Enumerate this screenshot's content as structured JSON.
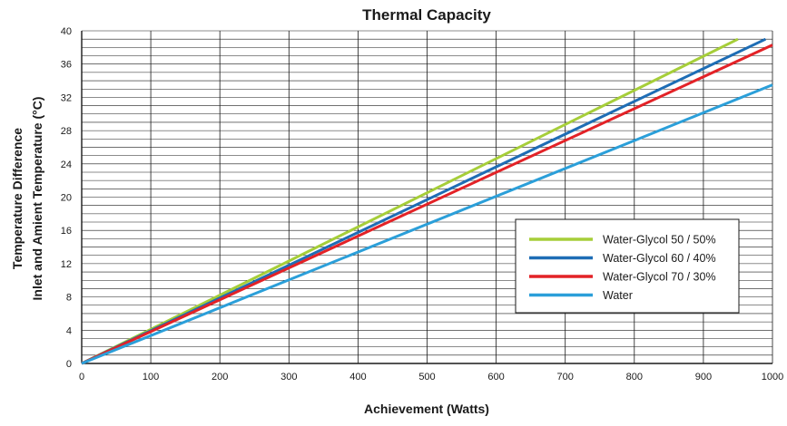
{
  "chart_data": {
    "type": "line",
    "title": "Thermal Capacity",
    "xlabel": "Achievement (Watts)",
    "ylabel_lines": [
      "Temperature Difference",
      "Inlet and Amient Temperature (°C)"
    ],
    "xlim": [
      0,
      1000
    ],
    "ylim": [
      0,
      40
    ],
    "x_ticks": [
      0,
      100,
      200,
      300,
      400,
      500,
      600,
      700,
      800,
      900,
      1000
    ],
    "y_ticks": [
      0,
      4,
      8,
      12,
      16,
      20,
      24,
      28,
      32,
      36,
      40
    ],
    "y_minor_step": 1,
    "grid": true,
    "legend_position": "right",
    "series": [
      {
        "name": "Water-Glycol 50 / 50%",
        "color": "#a6ce39",
        "x": [
          0,
          950
        ],
        "y": [
          0,
          39
        ]
      },
      {
        "name": "Water-Glycol 60 / 40%",
        "color": "#1e6db5",
        "x": [
          0,
          990
        ],
        "y": [
          0,
          39
        ]
      },
      {
        "name": "Water-Glycol 70 / 30%",
        "color": "#e32227",
        "x": [
          0,
          1000
        ],
        "y": [
          0,
          38.3
        ]
      },
      {
        "name": "Water",
        "color": "#2b9fd9",
        "x": [
          0,
          1000
        ],
        "y": [
          0,
          33.5
        ]
      }
    ]
  }
}
